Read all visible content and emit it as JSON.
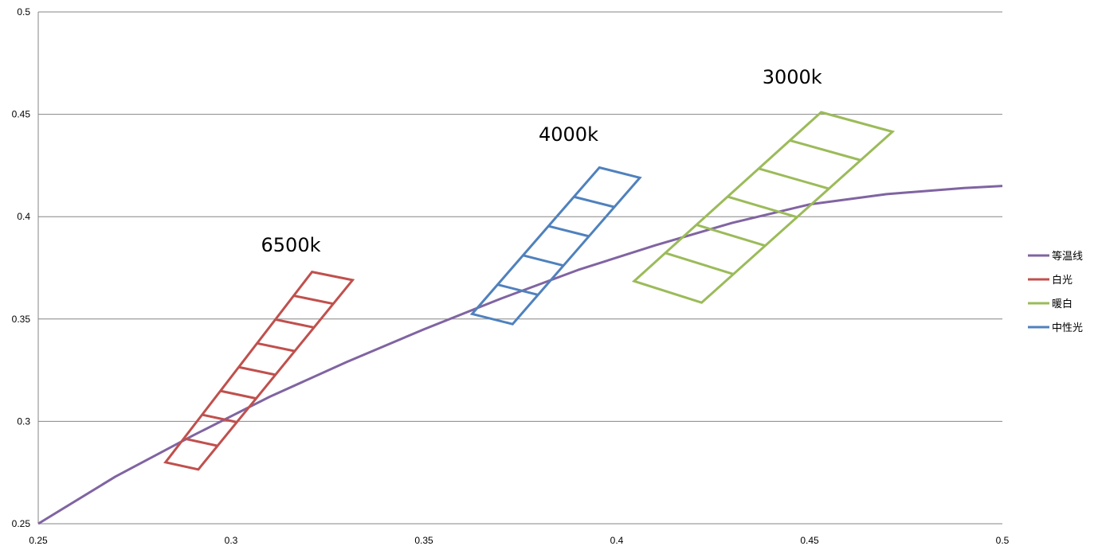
{
  "chart_data": {
    "type": "line",
    "xlim": [
      0.25,
      0.5
    ],
    "ylim": [
      0.25,
      0.5
    ],
    "x_ticks": [
      "0.25",
      "0.3",
      "0.35",
      "0.4",
      "0.45",
      "0.5"
    ],
    "y_ticks": [
      "0.25",
      "0.3",
      "0.35",
      "0.4",
      "0.45",
      "0.5"
    ],
    "grid": "horizontal",
    "legend_position": "right",
    "series": [
      {
        "name": "等温线",
        "color": "#8064a2",
        "kind": "curve",
        "points": [
          [
            0.25,
            0.25
          ],
          [
            0.27,
            0.273
          ],
          [
            0.29,
            0.293
          ],
          [
            0.31,
            0.312
          ],
          [
            0.33,
            0.329
          ],
          [
            0.35,
            0.345
          ],
          [
            0.37,
            0.36
          ],
          [
            0.39,
            0.374
          ],
          [
            0.41,
            0.386
          ],
          [
            0.43,
            0.397
          ],
          [
            0.45,
            0.406
          ],
          [
            0.47,
            0.411
          ],
          [
            0.49,
            0.414
          ],
          [
            0.5,
            0.415
          ]
        ]
      },
      {
        "name": "白光",
        "color": "#c0504d",
        "kind": "grid",
        "corners": {
          "tl": [
            0.321,
            0.373
          ],
          "tr": [
            0.3315,
            0.369
          ],
          "bl": [
            0.283,
            0.28
          ],
          "br": [
            0.2915,
            0.2765
          ]
        },
        "cells": 8
      },
      {
        "name": "暖白",
        "color": "#9bbb59",
        "kind": "grid",
        "corners": {
          "tl": [
            0.453,
            0.451
          ],
          "tr": [
            0.4715,
            0.4415
          ],
          "bl": [
            0.4045,
            0.3685
          ],
          "br": [
            0.422,
            0.358
          ]
        },
        "cells": 6
      },
      {
        "name": "中性光",
        "color": "#4f81bd",
        "kind": "grid",
        "corners": {
          "tl": [
            0.3955,
            0.424
          ],
          "tr": [
            0.406,
            0.419
          ],
          "bl": [
            0.3625,
            0.3525
          ],
          "br": [
            0.373,
            0.3475
          ]
        },
        "cells": 5
      }
    ],
    "annotations": [
      {
        "text": "6500k",
        "x": 0.3155,
        "y": 0.383
      },
      {
        "text": "4000k",
        "x": 0.3875,
        "y": 0.437
      },
      {
        "text": "3000k",
        "x": 0.4455,
        "y": 0.465
      }
    ]
  }
}
